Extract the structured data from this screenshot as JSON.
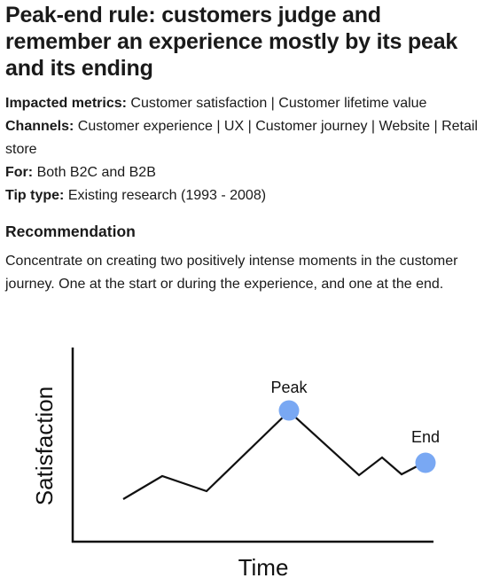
{
  "header": {
    "title": "Peak-end rule: customers judge and remember an experience mostly by its peak and its ending"
  },
  "meta": [
    {
      "label": "Impacted metrics:",
      "value": "Customer satisfaction | Customer lifetime value"
    },
    {
      "label": "Channels:",
      "value": "Customer experience | UX | Customer journey | Website | Retail store"
    },
    {
      "label": "For:",
      "value": "Both B2C and B2B"
    },
    {
      "label": "Tip type:",
      "value": "Existing research (1993 - 2008)"
    }
  ],
  "recommendation": {
    "heading": "Recommendation",
    "text": "Concentrate on creating two positively intense moments in the customer journey. One at the start or during the experience, and one at the end."
  },
  "illustration": {
    "y_label": "Satisfaction",
    "x_label": "Time",
    "peak_label": "Peak",
    "end_label": "End"
  }
}
